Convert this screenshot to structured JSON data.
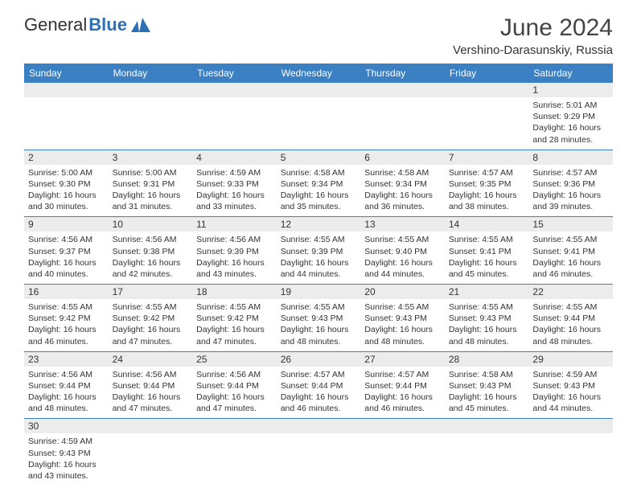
{
  "brand": {
    "part1": "General",
    "part2": "Blue"
  },
  "title": "June 2024",
  "location": "Vershino-Darasunskiy, Russia",
  "colors": {
    "header_bg": "#3a80c3",
    "header_text": "#ffffff",
    "daynum_bg": "#ececec",
    "row_border": "#3a80c3",
    "text": "#333333",
    "brand_blue": "#2d6fb3"
  },
  "day_names": [
    "Sunday",
    "Monday",
    "Tuesday",
    "Wednesday",
    "Thursday",
    "Friday",
    "Saturday"
  ],
  "weeks": [
    {
      "nums": [
        "",
        "",
        "",
        "",
        "",
        "",
        "1"
      ],
      "cells": [
        null,
        null,
        null,
        null,
        null,
        null,
        {
          "sunrise": "5:01 AM",
          "sunset": "9:29 PM",
          "daylight": "16 hours and 28 minutes."
        }
      ]
    },
    {
      "nums": [
        "2",
        "3",
        "4",
        "5",
        "6",
        "7",
        "8"
      ],
      "cells": [
        {
          "sunrise": "5:00 AM",
          "sunset": "9:30 PM",
          "daylight": "16 hours and 30 minutes."
        },
        {
          "sunrise": "5:00 AM",
          "sunset": "9:31 PM",
          "daylight": "16 hours and 31 minutes."
        },
        {
          "sunrise": "4:59 AM",
          "sunset": "9:33 PM",
          "daylight": "16 hours and 33 minutes."
        },
        {
          "sunrise": "4:58 AM",
          "sunset": "9:34 PM",
          "daylight": "16 hours and 35 minutes."
        },
        {
          "sunrise": "4:58 AM",
          "sunset": "9:34 PM",
          "daylight": "16 hours and 36 minutes."
        },
        {
          "sunrise": "4:57 AM",
          "sunset": "9:35 PM",
          "daylight": "16 hours and 38 minutes."
        },
        {
          "sunrise": "4:57 AM",
          "sunset": "9:36 PM",
          "daylight": "16 hours and 39 minutes."
        }
      ]
    },
    {
      "nums": [
        "9",
        "10",
        "11",
        "12",
        "13",
        "14",
        "15"
      ],
      "cells": [
        {
          "sunrise": "4:56 AM",
          "sunset": "9:37 PM",
          "daylight": "16 hours and 40 minutes."
        },
        {
          "sunrise": "4:56 AM",
          "sunset": "9:38 PM",
          "daylight": "16 hours and 42 minutes."
        },
        {
          "sunrise": "4:56 AM",
          "sunset": "9:39 PM",
          "daylight": "16 hours and 43 minutes."
        },
        {
          "sunrise": "4:55 AM",
          "sunset": "9:39 PM",
          "daylight": "16 hours and 44 minutes."
        },
        {
          "sunrise": "4:55 AM",
          "sunset": "9:40 PM",
          "daylight": "16 hours and 44 minutes."
        },
        {
          "sunrise": "4:55 AM",
          "sunset": "9:41 PM",
          "daylight": "16 hours and 45 minutes."
        },
        {
          "sunrise": "4:55 AM",
          "sunset": "9:41 PM",
          "daylight": "16 hours and 46 minutes."
        }
      ]
    },
    {
      "nums": [
        "16",
        "17",
        "18",
        "19",
        "20",
        "21",
        "22"
      ],
      "cells": [
        {
          "sunrise": "4:55 AM",
          "sunset": "9:42 PM",
          "daylight": "16 hours and 46 minutes."
        },
        {
          "sunrise": "4:55 AM",
          "sunset": "9:42 PM",
          "daylight": "16 hours and 47 minutes."
        },
        {
          "sunrise": "4:55 AM",
          "sunset": "9:42 PM",
          "daylight": "16 hours and 47 minutes."
        },
        {
          "sunrise": "4:55 AM",
          "sunset": "9:43 PM",
          "daylight": "16 hours and 48 minutes."
        },
        {
          "sunrise": "4:55 AM",
          "sunset": "9:43 PM",
          "daylight": "16 hours and 48 minutes."
        },
        {
          "sunrise": "4:55 AM",
          "sunset": "9:43 PM",
          "daylight": "16 hours and 48 minutes."
        },
        {
          "sunrise": "4:55 AM",
          "sunset": "9:44 PM",
          "daylight": "16 hours and 48 minutes."
        }
      ]
    },
    {
      "nums": [
        "23",
        "24",
        "25",
        "26",
        "27",
        "28",
        "29"
      ],
      "cells": [
        {
          "sunrise": "4:56 AM",
          "sunset": "9:44 PM",
          "daylight": "16 hours and 48 minutes."
        },
        {
          "sunrise": "4:56 AM",
          "sunset": "9:44 PM",
          "daylight": "16 hours and 47 minutes."
        },
        {
          "sunrise": "4:56 AM",
          "sunset": "9:44 PM",
          "daylight": "16 hours and 47 minutes."
        },
        {
          "sunrise": "4:57 AM",
          "sunset": "9:44 PM",
          "daylight": "16 hours and 46 minutes."
        },
        {
          "sunrise": "4:57 AM",
          "sunset": "9:44 PM",
          "daylight": "16 hours and 46 minutes."
        },
        {
          "sunrise": "4:58 AM",
          "sunset": "9:43 PM",
          "daylight": "16 hours and 45 minutes."
        },
        {
          "sunrise": "4:59 AM",
          "sunset": "9:43 PM",
          "daylight": "16 hours and 44 minutes."
        }
      ]
    },
    {
      "nums": [
        "30",
        "",
        "",
        "",
        "",
        "",
        ""
      ],
      "cells": [
        {
          "sunrise": "4:59 AM",
          "sunset": "9:43 PM",
          "daylight": "16 hours and 43 minutes."
        },
        null,
        null,
        null,
        null,
        null,
        null
      ]
    }
  ],
  "labels": {
    "sunrise_prefix": "Sunrise: ",
    "sunset_prefix": "Sunset: ",
    "daylight_prefix": "Daylight: "
  }
}
